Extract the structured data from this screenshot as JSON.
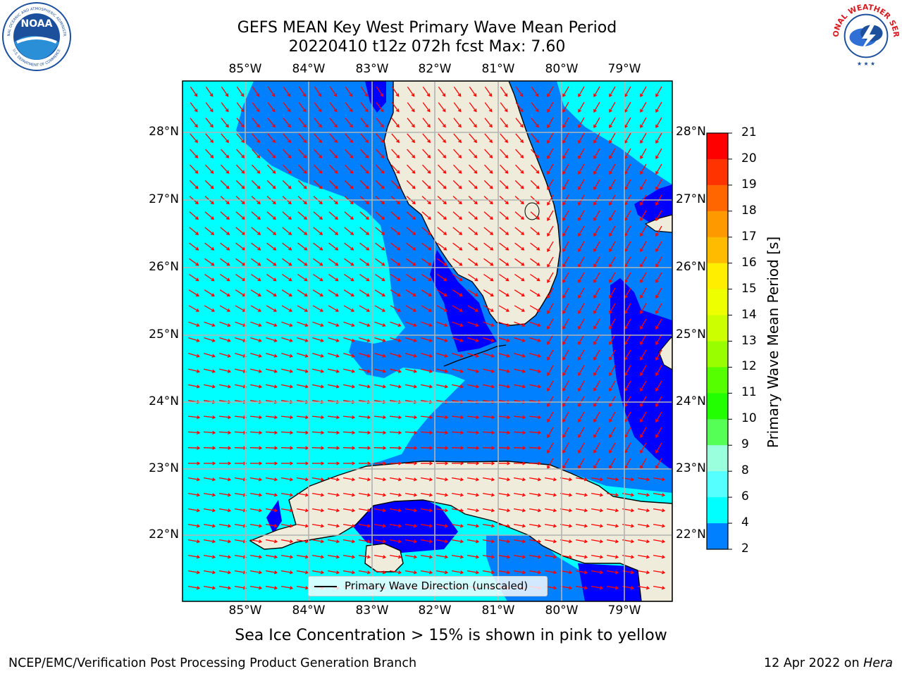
{
  "header": {
    "title_line1": "GEFS MEAN Key West Primary Wave Mean Period",
    "title_line2": "20220410 t12z 072h fcst   Max: 7.60"
  },
  "map": {
    "longitude_labels": [
      "85°W",
      "84°W",
      "83°W",
      "82°W",
      "81°W",
      "80°W",
      "79°W"
    ],
    "latitude_labels": [
      "28°N",
      "27°N",
      "26°N",
      "25°N",
      "24°N",
      "23°N",
      "22°N"
    ],
    "legend_label": "Primary Wave Direction (unscaled)",
    "colors": {
      "ocean_light": "#00ffff",
      "ocean_mid": "#0080ff",
      "ocean_deep": "#0000ff",
      "land": "#efecdb",
      "arrow": "#ff0000",
      "grid": "#b3b3b3"
    }
  },
  "colorbar": {
    "title": "Primary Wave Mean Period [s]",
    "ticks": [
      "21",
      "20",
      "19",
      "18",
      "17",
      "16",
      "15",
      "14",
      "13",
      "12",
      "11",
      "10",
      "9",
      "8",
      "6",
      "4",
      "2"
    ],
    "colors": [
      "#ff0000",
      "#ff3300",
      "#ff6600",
      "#ff9900",
      "#ffbb00",
      "#ffee00",
      "#eeff00",
      "#ccff00",
      "#99ff00",
      "#55ff00",
      "#22ff00",
      "#55ff55",
      "#99ffdd",
      "#55ffff",
      "#00ffff",
      "#0080ff",
      "#0000ff"
    ]
  },
  "subtitle": "Sea Ice Concentration > 15% is shown in pink to yellow",
  "footer": {
    "left": "NCEP/EMC/Verification Post Processing Product Generation Branch",
    "right_date": "12 Apr 2022 on ",
    "right_machine": "Hera"
  },
  "logos": {
    "noaa_text": "NOAA",
    "noaa_ring_top": "NATIONAL OCEANIC AND ATMOSPHERIC ADMINISTRATION",
    "noaa_ring_bottom": "U.S. DEPARTMENT OF COMMERCE",
    "nws_ring": "NATIONAL WEATHER SERVICE"
  }
}
